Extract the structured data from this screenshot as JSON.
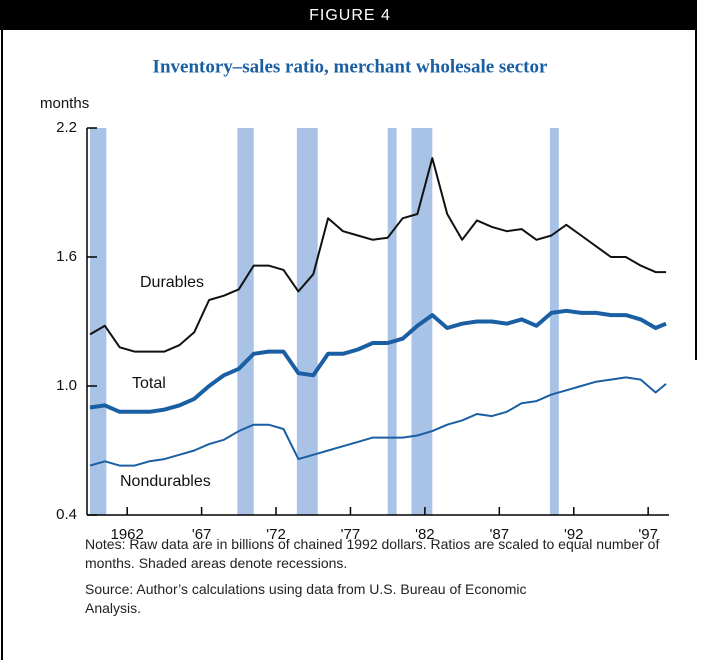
{
  "header": "FIGURE 4",
  "chart_data": {
    "type": "line",
    "title": "Inventory–sales ratio, merchant wholesale sector",
    "y_label": "months",
    "x": [
      1959.5,
      1960.5,
      1961.5,
      1962.5,
      1963.5,
      1964.5,
      1965.5,
      1966.5,
      1967.5,
      1968.5,
      1969.5,
      1970.5,
      1971.5,
      1972.5,
      1973.5,
      1974.5,
      1975.5,
      1976.5,
      1977.5,
      1978.5,
      1979.5,
      1980.5,
      1981.5,
      1982.5,
      1983.5,
      1984.5,
      1985.5,
      1986.5,
      1987.5,
      1988.5,
      1989.5,
      1990.5,
      1991.5,
      1992.5,
      1993.5,
      1994.5,
      1995.5,
      1996.5,
      1997.5,
      1998.2
    ],
    "series": [
      {
        "name": "Durables",
        "color": "#111111",
        "width": 2,
        "values": [
          1.24,
          1.28,
          1.18,
          1.16,
          1.16,
          1.16,
          1.19,
          1.25,
          1.4,
          1.42,
          1.45,
          1.56,
          1.56,
          1.54,
          1.44,
          1.52,
          1.78,
          1.72,
          1.7,
          1.68,
          1.69,
          1.78,
          1.8,
          2.06,
          1.8,
          1.68,
          1.77,
          1.74,
          1.72,
          1.73,
          1.68,
          1.7,
          1.75,
          1.7,
          1.65,
          1.6,
          1.6,
          1.56,
          1.53,
          1.53
        ]
      },
      {
        "name": "Total",
        "color": "#1a5fa3",
        "width": 4,
        "values": [
          0.9,
          0.91,
          0.88,
          0.88,
          0.88,
          0.89,
          0.91,
          0.94,
          1.0,
          1.05,
          1.08,
          1.15,
          1.16,
          1.16,
          1.06,
          1.05,
          1.15,
          1.15,
          1.17,
          1.2,
          1.2,
          1.22,
          1.28,
          1.33,
          1.27,
          1.29,
          1.3,
          1.3,
          1.29,
          1.31,
          1.28,
          1.34,
          1.35,
          1.34,
          1.34,
          1.33,
          1.33,
          1.31,
          1.27,
          1.29
        ]
      },
      {
        "name": "Nondurables",
        "color": "#1a5fa3",
        "width": 2,
        "values": [
          0.63,
          0.65,
          0.63,
          0.63,
          0.65,
          0.66,
          0.68,
          0.7,
          0.73,
          0.75,
          0.79,
          0.82,
          0.82,
          0.8,
          0.66,
          0.68,
          0.7,
          0.72,
          0.74,
          0.76,
          0.76,
          0.76,
          0.77,
          0.79,
          0.82,
          0.84,
          0.87,
          0.86,
          0.88,
          0.92,
          0.93,
          0.96,
          0.98,
          1.0,
          1.02,
          1.03,
          1.04,
          1.03,
          0.97,
          1.01
        ]
      }
    ],
    "recessions": [
      [
        1959.5,
        1960.6
      ],
      [
        1969.4,
        1970.5
      ],
      [
        1973.4,
        1974.8
      ],
      [
        1979.5,
        1980.1
      ],
      [
        1981.1,
        1982.5
      ],
      [
        1990.4,
        1991.0
      ]
    ],
    "recession_color": "#a9c3e6",
    "xlim": [
      1959.3,
      1998.4
    ],
    "ylim": [
      0.4,
      2.2
    ],
    "xticks": [
      1962,
      {
        "value": 1967,
        "label": "'67"
      },
      {
        "value": 1972,
        "label": "'72"
      },
      {
        "value": 1977,
        "label": "'77"
      },
      {
        "value": 1982,
        "label": "'82"
      },
      {
        "value": 1987,
        "label": "'87"
      },
      {
        "value": 1992,
        "label": "'92"
      },
      {
        "value": 1997,
        "label": "'97"
      }
    ],
    "yticks": [
      0.4,
      {
        "value": 1,
        "label": "1.0"
      },
      1.6,
      2.2
    ],
    "notes": "Notes: Raw data are in billions of chained 1992 dollars. Ratios are scaled to equal number of months. Shaded areas denote recessions.",
    "source": "Source: Author’s calculations using data from U.S. Bureau of Economic Analysis."
  }
}
